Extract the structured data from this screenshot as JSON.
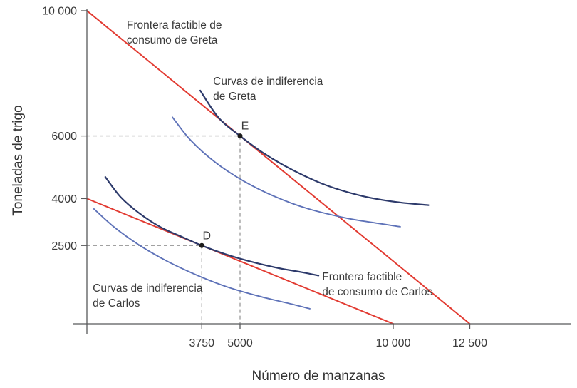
{
  "chart_data": {
    "type": "line",
    "title": "",
    "xlabel": "Número de manzanas",
    "ylabel": "Toneladas de trigo",
    "xlim": [
      0,
      15800
    ],
    "ylim": [
      0,
      10000
    ],
    "grid": false,
    "legend_position": "none-annotated-on-chart",
    "x_ticks": [
      {
        "value": 3750,
        "label": "3750"
      },
      {
        "value": 5000,
        "label": "5000"
      },
      {
        "value": 10000,
        "label": "10 000"
      },
      {
        "value": 12500,
        "label": "12 500"
      }
    ],
    "y_ticks": [
      {
        "value": 10000,
        "label": "10 000"
      },
      {
        "value": 6000,
        "label": "6000"
      },
      {
        "value": 4000,
        "label": "4000"
      },
      {
        "value": 2500,
        "label": "2500"
      }
    ],
    "series": [
      {
        "name": "frontera-factible-greta",
        "kind": "budget-line",
        "color": "#e23b32",
        "points": [
          [
            0,
            10000
          ],
          [
            12500,
            0
          ]
        ]
      },
      {
        "name": "frontera-factible-carlos",
        "kind": "budget-line",
        "color": "#e23b32",
        "points": [
          [
            0,
            4000
          ],
          [
            10000,
            0
          ]
        ]
      },
      {
        "name": "indiferencia-greta-alta",
        "kind": "indifference-curve",
        "color": "#2d3a6b",
        "points": [
          [
            3700,
            7450
          ],
          [
            4300,
            6580
          ],
          [
            5000,
            6000
          ],
          [
            5800,
            5430
          ],
          [
            6700,
            4920
          ],
          [
            7800,
            4430
          ],
          [
            9000,
            4080
          ],
          [
            10100,
            3890
          ],
          [
            11150,
            3790
          ]
        ]
      },
      {
        "name": "indiferencia-greta-baja",
        "kind": "indifference-curve",
        "color": "#5e72b8",
        "points": [
          [
            2790,
            6600
          ],
          [
            3400,
            5850
          ],
          [
            4200,
            5150
          ],
          [
            5100,
            4570
          ],
          [
            6100,
            4080
          ],
          [
            7200,
            3680
          ],
          [
            8500,
            3370
          ],
          [
            9500,
            3210
          ],
          [
            10230,
            3100
          ]
        ]
      },
      {
        "name": "indiferencia-carlos-alta",
        "kind": "indifference-curve",
        "color": "#2d3a6b",
        "points": [
          [
            600,
            4690
          ],
          [
            1100,
            4050
          ],
          [
            1700,
            3540
          ],
          [
            2400,
            3090
          ],
          [
            3100,
            2780
          ],
          [
            3750,
            2500
          ],
          [
            4500,
            2230
          ],
          [
            5300,
            2000
          ],
          [
            6200,
            1790
          ],
          [
            7000,
            1650
          ],
          [
            7560,
            1540
          ]
        ]
      },
      {
        "name": "indiferencia-carlos-baja",
        "kind": "indifference-curve",
        "color": "#5e72b8",
        "points": [
          [
            230,
            3670
          ],
          [
            900,
            3080
          ],
          [
            1700,
            2520
          ],
          [
            2600,
            2010
          ],
          [
            3600,
            1550
          ],
          [
            4600,
            1170
          ],
          [
            5700,
            860
          ],
          [
            6600,
            650
          ],
          [
            7280,
            480
          ]
        ]
      }
    ],
    "points": [
      {
        "name": "E",
        "x": 5000,
        "y": 6000,
        "guides": true
      },
      {
        "name": "D",
        "x": 3750,
        "y": 2500,
        "guides": true
      }
    ],
    "annotations": [
      {
        "name": "frontera-greta-label",
        "lines": [
          "Frontera factible de",
          "consumo de Greta"
        ],
        "x": 1300,
        "y": 9730
      },
      {
        "name": "curvas-greta-label",
        "lines": [
          "Curvas de indiferencia",
          "de Greta"
        ],
        "x": 4120,
        "y": 7930
      },
      {
        "name": "curvas-carlos-label",
        "lines": [
          "Curvas de indiferencia",
          "de Carlos"
        ],
        "x": 190,
        "y": 1320
      },
      {
        "name": "frontera-carlos-label",
        "lines": [
          "Frontera factible",
          "de consumo de Carlos"
        ],
        "x": 7680,
        "y": 1690
      }
    ]
  },
  "colors": {
    "frontier": "#e23b32",
    "indifference_dark": "#2d3a6b",
    "indifference_light": "#5e72b8",
    "axis": "#58595b",
    "guide": "#a1a1a1",
    "text": "#3b3b3b",
    "point": "#1c1c1c",
    "background": "#ffffff"
  }
}
